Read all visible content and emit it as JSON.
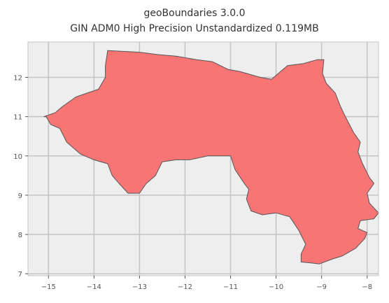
{
  "title": "geoBoundaries 3.0.0",
  "subtitle": "GIN ADM0 High Precision Unstandardized 0.119MB",
  "chart_data": {
    "type": "map",
    "xlim": [
      -15.45,
      -7.75
    ],
    "ylim": [
      6.95,
      12.9
    ],
    "xticks": [
      -15,
      -14,
      -13,
      -12,
      -11,
      -10,
      -9,
      -8
    ],
    "yticks": [
      7,
      8,
      9,
      10,
      11,
      12
    ],
    "xtick_labels": [
      "−15",
      "−14",
      "−13",
      "−12",
      "−11",
      "−10",
      "−9",
      "−8"
    ],
    "ytick_labels": [
      "7",
      "8",
      "9",
      "10",
      "11",
      "12"
    ],
    "grid": true,
    "fill_color": "#f77575",
    "edge_color": "#555555",
    "background_color": "#eeeeee",
    "grid_color": "#c4c4c4",
    "boundary": [
      [
        -13.7,
        12.68
      ],
      [
        -13.0,
        12.64
      ],
      [
        -12.6,
        12.58
      ],
      [
        -12.2,
        12.54
      ],
      [
        -11.75,
        12.45
      ],
      [
        -11.4,
        12.4
      ],
      [
        -11.05,
        12.2
      ],
      [
        -10.8,
        12.15
      ],
      [
        -10.35,
        12.0
      ],
      [
        -10.1,
        11.95
      ],
      [
        -9.75,
        12.3
      ],
      [
        -9.4,
        12.35
      ],
      [
        -9.1,
        12.45
      ],
      [
        -8.95,
        12.45
      ],
      [
        -8.98,
        12.1
      ],
      [
        -8.9,
        11.85
      ],
      [
        -8.7,
        11.6
      ],
      [
        -8.6,
        11.3
      ],
      [
        -8.5,
        11.05
      ],
      [
        -8.3,
        10.6
      ],
      [
        -8.15,
        10.35
      ],
      [
        -8.2,
        10.1
      ],
      [
        -8.1,
        9.8
      ],
      [
        -7.95,
        9.45
      ],
      [
        -7.85,
        9.3
      ],
      [
        -8.0,
        9.05
      ],
      [
        -7.95,
        8.8
      ],
      [
        -7.75,
        8.55
      ],
      [
        -7.85,
        8.4
      ],
      [
        -8.15,
        8.35
      ],
      [
        -8.2,
        8.15
      ],
      [
        -8.0,
        8.05
      ],
      [
        -8.05,
        7.9
      ],
      [
        -8.25,
        7.65
      ],
      [
        -8.4,
        7.55
      ],
      [
        -8.55,
        7.45
      ],
      [
        -8.75,
        7.38
      ],
      [
        -9.05,
        7.25
      ],
      [
        -9.2,
        7.27
      ],
      [
        -9.45,
        7.3
      ],
      [
        -9.45,
        7.5
      ],
      [
        -9.35,
        7.75
      ],
      [
        -9.5,
        8.1
      ],
      [
        -9.7,
        8.45
      ],
      [
        -10.0,
        8.55
      ],
      [
        -10.3,
        8.5
      ],
      [
        -10.55,
        8.6
      ],
      [
        -10.65,
        8.9
      ],
      [
        -10.6,
        9.15
      ],
      [
        -10.7,
        9.3
      ],
      [
        -10.9,
        9.65
      ],
      [
        -11.0,
        10.0
      ],
      [
        -11.5,
        10.0
      ],
      [
        -11.9,
        9.9
      ],
      [
        -12.2,
        9.9
      ],
      [
        -12.5,
        9.85
      ],
      [
        -12.65,
        9.5
      ],
      [
        -12.85,
        9.3
      ],
      [
        -13.0,
        9.05
      ],
      [
        -13.25,
        9.05
      ],
      [
        -13.45,
        9.3
      ],
      [
        -13.6,
        9.5
      ],
      [
        -13.7,
        9.8
      ],
      [
        -14.0,
        9.9
      ],
      [
        -14.3,
        10.05
      ],
      [
        -14.6,
        10.35
      ],
      [
        -14.75,
        10.7
      ],
      [
        -14.95,
        10.8
      ],
      [
        -15.05,
        11.0
      ],
      [
        -15.1,
        11.0
      ],
      [
        -14.85,
        11.1
      ],
      [
        -14.7,
        11.25
      ],
      [
        -14.4,
        11.5
      ],
      [
        -13.9,
        11.7
      ],
      [
        -13.75,
        12.0
      ],
      [
        -13.75,
        12.3
      ]
    ]
  }
}
